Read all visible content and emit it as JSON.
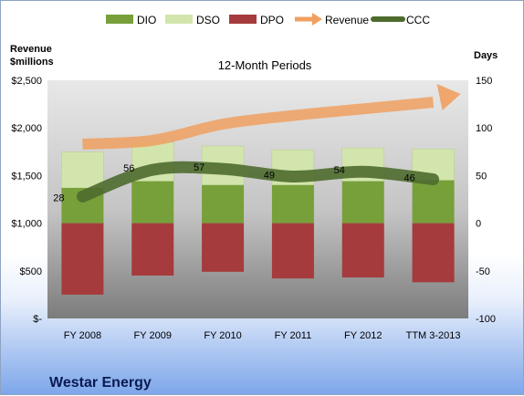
{
  "chart_data": {
    "type": "bar",
    "title": "12-Month Periods",
    "company": "Westar Energy",
    "categories": [
      "FY 2008",
      "FY 2009",
      "FY 2010",
      "FY 2011",
      "FY 2012",
      "TTM 3-2013"
    ],
    "left_axis": {
      "title_line1": "Revenue",
      "title_line2": "$millions",
      "ylim": [
        0,
        2500
      ],
      "ticks": [
        0,
        500,
        1000,
        1500,
        2000,
        2500
      ],
      "tick_labels": [
        "$-",
        "$500",
        "$1,000",
        "$1,500",
        "$2,000",
        "$2,500"
      ]
    },
    "right_axis": {
      "title": "Days",
      "ylim": [
        -100,
        150
      ],
      "ticks": [
        -100,
        -50,
        0,
        50,
        100,
        150
      ],
      "tick_labels": [
        "-100",
        "-50",
        "0",
        "50",
        "100",
        "150"
      ]
    },
    "series": [
      {
        "name": "DIO",
        "kind": "bar-stack-positive",
        "axis": "right",
        "color": "#77a03a",
        "values": [
          37,
          44,
          40,
          40,
          44,
          45
        ]
      },
      {
        "name": "DSO",
        "kind": "bar-stack-positive",
        "axis": "right",
        "color": "#d2e5ac",
        "values": [
          38,
          41,
          41,
          37,
          35,
          33
        ]
      },
      {
        "name": "DPO",
        "kind": "bar-stack-negative",
        "axis": "right",
        "color": "#a53b3c",
        "values": [
          -75,
          -55,
          -51,
          -58,
          -57,
          -62
        ]
      },
      {
        "name": "Revenue",
        "kind": "arrow-line",
        "axis": "left",
        "color": "#f0a060",
        "values": [
          1830,
          1870,
          2040,
          2130,
          2200,
          2270
        ]
      },
      {
        "name": "CCC",
        "kind": "line",
        "axis": "right",
        "color": "#4e6b2e",
        "values": [
          28,
          56,
          57,
          49,
          54,
          46
        ]
      }
    ],
    "ccc_labels": [
      "28",
      "56",
      "57",
      "49",
      "54",
      "46"
    ],
    "legend_position": "top",
    "grid": false
  },
  "colors": {
    "plot_top": "#e6e6e6",
    "plot_bottom": "#7f7f7f",
    "dio": "#77a03a",
    "dso": "#d2e5ac",
    "dpo": "#a53b3c",
    "revenue": "#f0a060",
    "ccc": "#4e6b2e",
    "company_text": "#0b1a52"
  }
}
